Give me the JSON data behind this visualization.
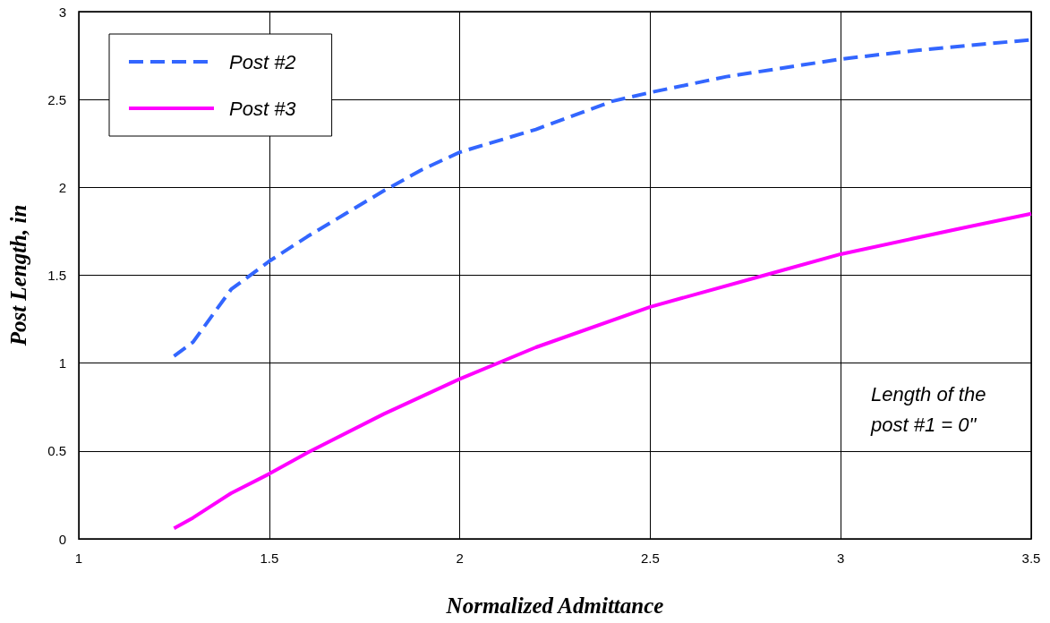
{
  "chart_data": {
    "type": "line",
    "xlabel": "Normalized Admittance",
    "ylabel": "Post Length, in",
    "xlim": [
      1,
      3.5
    ],
    "xticks": [
      1,
      1.5,
      2,
      2.5,
      3,
      3.5
    ],
    "ylim": [
      0,
      3
    ],
    "yticks": [
      0,
      0.5,
      1,
      1.5,
      2,
      2.5,
      3
    ],
    "grid": true,
    "legend": "top left",
    "marker": "none",
    "annotations": [
      "Length of the post #1 = 0\""
    ],
    "series": [
      {
        "name": "Post #2",
        "color": "#3366ff",
        "line_style": "dashed",
        "x": [
          1.25,
          1.3,
          1.35,
          1.4,
          1.5,
          1.6,
          1.7,
          1.8,
          1.9,
          2,
          2.2,
          2.4,
          2.5,
          2.7,
          3,
          3.2,
          3.5
        ],
        "values": [
          1.04,
          1.12,
          1.27,
          1.42,
          1.58,
          1.72,
          1.85,
          1.98,
          2.1,
          2.2,
          2.33,
          2.49,
          2.54,
          2.63,
          2.73,
          2.78,
          2.84
        ]
      },
      {
        "name": "Post #3",
        "color": "#ff00ff",
        "line_style": "solid",
        "x": [
          1.25,
          1.3,
          1.4,
          1.5,
          1.6,
          1.8,
          2,
          2.2,
          2.5,
          2.8,
          3,
          3.3,
          3.5
        ],
        "values": [
          0.06,
          0.12,
          0.26,
          0.37,
          0.49,
          0.71,
          0.91,
          1.09,
          1.32,
          1.5,
          1.62,
          1.76,
          1.85
        ]
      }
    ]
  }
}
